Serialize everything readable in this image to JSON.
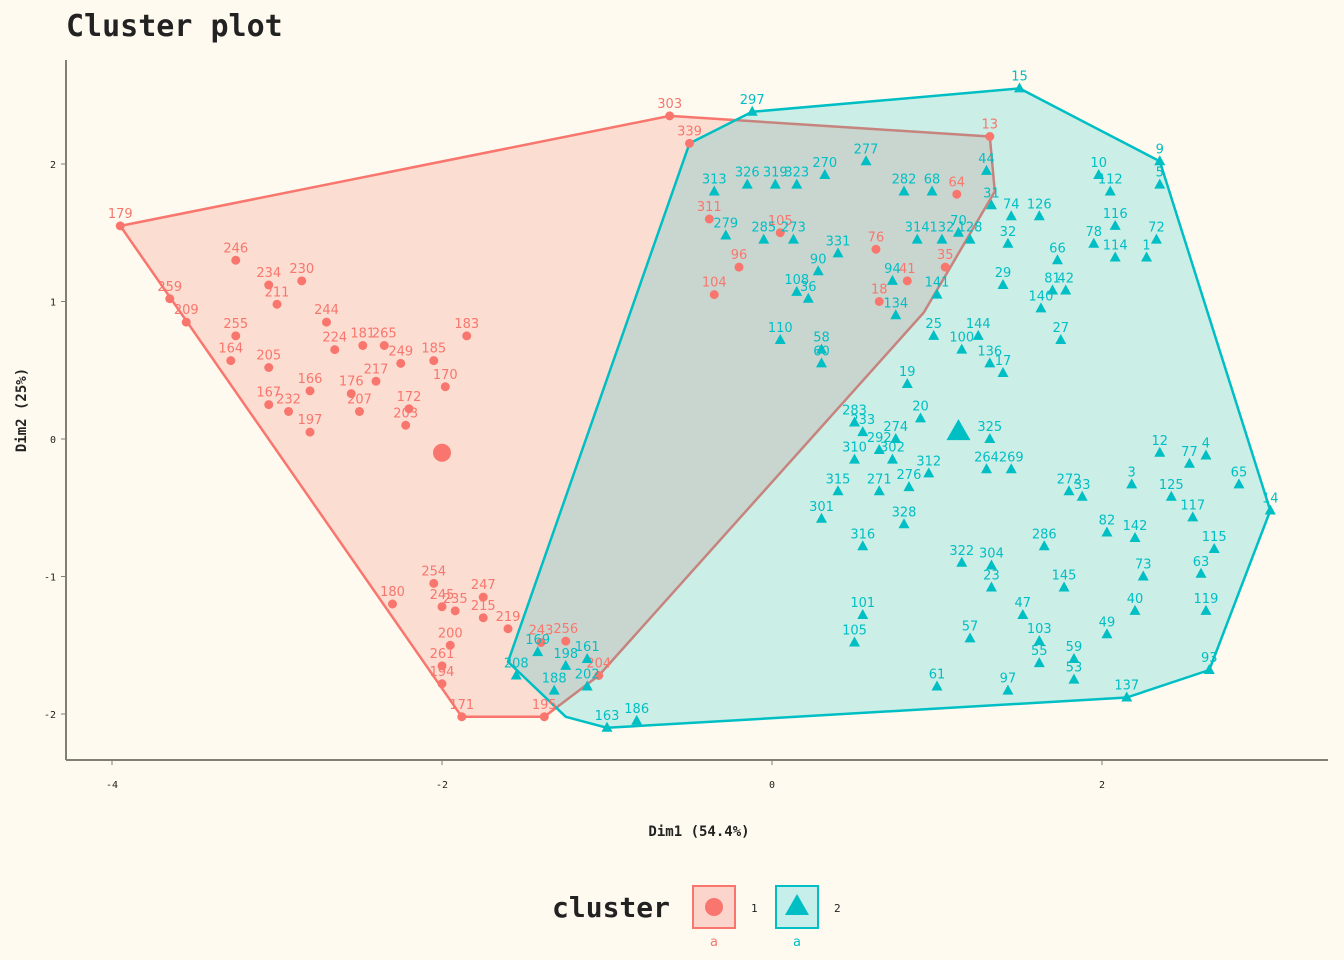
{
  "chart_data": {
    "type": "scatter",
    "title": "Cluster plot",
    "xlabel": "Dim1 (54.4%)",
    "ylabel": "Dim2 (25%)",
    "xlim": [
      -4.3,
      3.4
    ],
    "ylim": [
      -2.35,
      2.75
    ],
    "xticks": [
      -4,
      -2,
      0,
      2
    ],
    "yticks": [
      -2,
      -1,
      0,
      1,
      2
    ],
    "legend_title": "cluster",
    "legend_position": "bottom",
    "series": [
      {
        "name": "1",
        "color": "#f8766d",
        "shape": "circle",
        "centroid": [
          -2.0,
          -0.1
        ],
        "hull": [
          [
            -3.95,
            1.55
          ],
          [
            -0.62,
            2.35
          ],
          [
            1.32,
            2.2
          ],
          [
            1.35,
            1.8
          ],
          [
            0.92,
            0.92
          ],
          [
            -1.05,
            -1.72
          ],
          [
            -1.38,
            -2.02
          ],
          [
            -1.88,
            -2.02
          ]
        ],
        "points": [
          {
            "id": "179",
            "x": -3.95,
            "y": 1.55
          },
          {
            "id": "303",
            "x": -0.62,
            "y": 2.35
          },
          {
            "id": "13",
            "x": 1.32,
            "y": 2.2
          },
          {
            "id": "246",
            "x": -3.25,
            "y": 1.3
          },
          {
            "id": "259",
            "x": -3.65,
            "y": 1.02
          },
          {
            "id": "209",
            "x": -3.55,
            "y": 0.85
          },
          {
            "id": "234",
            "x": -3.05,
            "y": 1.12
          },
          {
            "id": "230",
            "x": -2.85,
            "y": 1.15
          },
          {
            "id": "211",
            "x": -3.0,
            "y": 0.98
          },
          {
            "id": "255",
            "x": -3.25,
            "y": 0.75
          },
          {
            "id": "244",
            "x": -2.7,
            "y": 0.85
          },
          {
            "id": "164",
            "x": -3.28,
            "y": 0.57
          },
          {
            "id": "224",
            "x": -2.65,
            "y": 0.65
          },
          {
            "id": "181",
            "x": -2.48,
            "y": 0.68
          },
          {
            "id": "265",
            "x": -2.35,
            "y": 0.68
          },
          {
            "id": "183",
            "x": -1.85,
            "y": 0.75
          },
          {
            "id": "249",
            "x": -2.25,
            "y": 0.55
          },
          {
            "id": "185",
            "x": -2.05,
            "y": 0.57
          },
          {
            "id": "205",
            "x": -3.05,
            "y": 0.52
          },
          {
            "id": "217",
            "x": -2.4,
            "y": 0.42
          },
          {
            "id": "170",
            "x": -1.98,
            "y": 0.38
          },
          {
            "id": "166",
            "x": -2.8,
            "y": 0.35
          },
          {
            "id": "176",
            "x": -2.55,
            "y": 0.33
          },
          {
            "id": "167",
            "x": -3.05,
            "y": 0.25
          },
          {
            "id": "232",
            "x": -2.93,
            "y": 0.2
          },
          {
            "id": "207",
            "x": -2.5,
            "y": 0.2
          },
          {
            "id": "197",
            "x": -2.8,
            "y": 0.05
          },
          {
            "id": "172",
            "x": -2.2,
            "y": 0.22
          },
          {
            "id": "203",
            "x": -2.22,
            "y": 0.1
          },
          {
            "id": "254",
            "x": -2.05,
            "y": -1.05
          },
          {
            "id": "180",
            "x": -2.3,
            "y": -1.2
          },
          {
            "id": "247",
            "x": -1.75,
            "y": -1.15
          },
          {
            "id": "245",
            "x": -2.0,
            "y": -1.22
          },
          {
            "id": "235",
            "x": -1.92,
            "y": -1.25
          },
          {
            "id": "215",
            "x": -1.75,
            "y": -1.3
          },
          {
            "id": "219",
            "x": -1.6,
            "y": -1.38
          },
          {
            "id": "243",
            "x": -1.4,
            "y": -1.48
          },
          {
            "id": "256",
            "x": -1.25,
            "y": -1.47
          },
          {
            "id": "200",
            "x": -1.95,
            "y": -1.5
          },
          {
            "id": "261",
            "x": -2.0,
            "y": -1.65
          },
          {
            "id": "194",
            "x": -2.0,
            "y": -1.78
          },
          {
            "id": "171",
            "x": -1.88,
            "y": -2.02
          },
          {
            "id": "195",
            "x": -1.38,
            "y": -2.02
          },
          {
            "id": "204",
            "x": -1.05,
            "y": -1.72
          },
          {
            "id": "339",
            "x": -0.5,
            "y": 2.15
          },
          {
            "id": "311",
            "x": -0.38,
            "y": 1.6
          },
          {
            "id": "104",
            "x": -0.35,
            "y": 1.05
          },
          {
            "id": "96",
            "x": -0.2,
            "y": 1.25
          },
          {
            "id": "105",
            "x": 0.05,
            "y": 1.5
          },
          {
            "id": "64",
            "x": 1.12,
            "y": 1.78
          },
          {
            "id": "76",
            "x": 0.63,
            "y": 1.38
          },
          {
            "id": "35",
            "x": 1.05,
            "y": 1.25
          },
          {
            "id": "41",
            "x": 0.82,
            "y": 1.15
          },
          {
            "id": "18",
            "x": 0.65,
            "y": 1.0
          }
        ]
      },
      {
        "name": "2",
        "color": "#00bfc4",
        "shape": "triangle",
        "centroid": [
          1.13,
          0.05
        ],
        "hull": [
          [
            -0.12,
            2.38
          ],
          [
            1.5,
            2.55
          ],
          [
            2.35,
            2.02
          ],
          [
            3.02,
            -0.52
          ],
          [
            2.65,
            -1.68
          ],
          [
            2.15,
            -1.88
          ],
          [
            -1.0,
            -2.1
          ],
          [
            -1.25,
            -2.02
          ],
          [
            -1.6,
            -1.62
          ],
          [
            -0.5,
            2.15
          ]
        ],
        "points": [
          {
            "id": "297",
            "x": -0.12,
            "y": 2.38
          },
          {
            "id": "15",
            "x": 1.5,
            "y": 2.55
          },
          {
            "id": "9",
            "x": 2.35,
            "y": 2.02
          },
          {
            "id": "14",
            "x": 3.02,
            "y": -0.52
          },
          {
            "id": "93",
            "x": 2.65,
            "y": -1.68
          },
          {
            "id": "137",
            "x": 2.15,
            "y": -1.88
          },
          {
            "id": "163",
            "x": -1.0,
            "y": -2.1
          },
          {
            "id": "186",
            "x": -0.82,
            "y": -2.05
          },
          {
            "id": "313",
            "x": -0.35,
            "y": 1.8
          },
          {
            "id": "326",
            "x": -0.15,
            "y": 1.85
          },
          {
            "id": "319",
            "x": 0.02,
            "y": 1.85
          },
          {
            "id": "323",
            "x": 0.15,
            "y": 1.85
          },
          {
            "id": "270",
            "x": 0.32,
            "y": 1.92
          },
          {
            "id": "277",
            "x": 0.57,
            "y": 2.02
          },
          {
            "id": "282",
            "x": 0.8,
            "y": 1.8
          },
          {
            "id": "68",
            "x": 0.97,
            "y": 1.8
          },
          {
            "id": "44",
            "x": 1.3,
            "y": 1.95
          },
          {
            "id": "31",
            "x": 1.33,
            "y": 1.7
          },
          {
            "id": "74",
            "x": 1.45,
            "y": 1.62
          },
          {
            "id": "126",
            "x": 1.62,
            "y": 1.62
          },
          {
            "id": "10",
            "x": 1.98,
            "y": 1.92
          },
          {
            "id": "112",
            "x": 2.05,
            "y": 1.8
          },
          {
            "id": "5",
            "x": 2.35,
            "y": 1.85
          },
          {
            "id": "116",
            "x": 2.08,
            "y": 1.55
          },
          {
            "id": "72",
            "x": 2.33,
            "y": 1.45
          },
          {
            "id": "78",
            "x": 1.95,
            "y": 1.42
          },
          {
            "id": "114",
            "x": 2.08,
            "y": 1.32
          },
          {
            "id": "1",
            "x": 2.27,
            "y": 1.32
          },
          {
            "id": "66",
            "x": 1.73,
            "y": 1.3
          },
          {
            "id": "32",
            "x": 1.43,
            "y": 1.42
          },
          {
            "id": "29",
            "x": 1.4,
            "y": 1.12
          },
          {
            "id": "81",
            "x": 1.7,
            "y": 1.08
          },
          {
            "id": "42",
            "x": 1.78,
            "y": 1.08
          },
          {
            "id": "140",
            "x": 1.63,
            "y": 0.95
          },
          {
            "id": "27",
            "x": 1.75,
            "y": 0.72
          },
          {
            "id": "70",
            "x": 1.13,
            "y": 1.5
          },
          {
            "id": "314",
            "x": 0.88,
            "y": 1.45
          },
          {
            "id": "132",
            "x": 1.03,
            "y": 1.45
          },
          {
            "id": "128",
            "x": 1.2,
            "y": 1.45
          },
          {
            "id": "279",
            "x": -0.28,
            "y": 1.48
          },
          {
            "id": "285",
            "x": -0.05,
            "y": 1.45
          },
          {
            "id": "273",
            "x": 0.13,
            "y": 1.45
          },
          {
            "id": "331",
            "x": 0.4,
            "y": 1.35
          },
          {
            "id": "90",
            "x": 0.28,
            "y": 1.22
          },
          {
            "id": "94",
            "x": 0.73,
            "y": 1.15
          },
          {
            "id": "108",
            "x": 0.15,
            "y": 1.07
          },
          {
            "id": "36",
            "x": 0.22,
            "y": 1.02
          },
          {
            "id": "141",
            "x": 1.0,
            "y": 1.05
          },
          {
            "id": "134",
            "x": 0.75,
            "y": 0.9
          },
          {
            "id": "110",
            "x": 0.05,
            "y": 0.72
          },
          {
            "id": "58",
            "x": 0.3,
            "y": 0.65
          },
          {
            "id": "60",
            "x": 0.3,
            "y": 0.55
          },
          {
            "id": "25",
            "x": 0.98,
            "y": 0.75
          },
          {
            "id": "144",
            "x": 1.25,
            "y": 0.75
          },
          {
            "id": "100",
            "x": 1.15,
            "y": 0.65
          },
          {
            "id": "136",
            "x": 1.32,
            "y": 0.55
          },
          {
            "id": "17",
            "x": 1.4,
            "y": 0.48
          },
          {
            "id": "19",
            "x": 0.82,
            "y": 0.4
          },
          {
            "id": "20",
            "x": 0.9,
            "y": 0.15
          },
          {
            "id": "283",
            "x": 0.5,
            "y": 0.12
          },
          {
            "id": "233",
            "x": 0.55,
            "y": 0.05
          },
          {
            "id": "274",
            "x": 0.75,
            "y": 0.0
          },
          {
            "id": "325",
            "x": 1.32,
            "y": 0.0
          },
          {
            "id": "292",
            "x": 0.65,
            "y": -0.08
          },
          {
            "id": "310",
            "x": 0.5,
            "y": -0.15
          },
          {
            "id": "302",
            "x": 0.73,
            "y": -0.15
          },
          {
            "id": "264",
            "x": 1.3,
            "y": -0.22
          },
          {
            "id": "269",
            "x": 1.45,
            "y": -0.22
          },
          {
            "id": "312",
            "x": 0.95,
            "y": -0.25
          },
          {
            "id": "315",
            "x": 0.4,
            "y": -0.38
          },
          {
            "id": "271",
            "x": 0.65,
            "y": -0.38
          },
          {
            "id": "276",
            "x": 0.83,
            "y": -0.35
          },
          {
            "id": "12",
            "x": 2.35,
            "y": -0.1
          },
          {
            "id": "4",
            "x": 2.63,
            "y": -0.12
          },
          {
            "id": "77",
            "x": 2.53,
            "y": -0.18
          },
          {
            "id": "65",
            "x": 2.83,
            "y": -0.33
          },
          {
            "id": "3",
            "x": 2.18,
            "y": -0.33
          },
          {
            "id": "272",
            "x": 1.8,
            "y": -0.38
          },
          {
            "id": "33",
            "x": 1.88,
            "y": -0.42
          },
          {
            "id": "125",
            "x": 2.42,
            "y": -0.42
          },
          {
            "id": "301",
            "x": 0.3,
            "y": -0.58
          },
          {
            "id": "328",
            "x": 0.8,
            "y": -0.62
          },
          {
            "id": "316",
            "x": 0.55,
            "y": -0.78
          },
          {
            "id": "322",
            "x": 1.15,
            "y": -0.9
          },
          {
            "id": "304",
            "x": 1.33,
            "y": -0.92
          },
          {
            "id": "286",
            "x": 1.65,
            "y": -0.78
          },
          {
            "id": "82",
            "x": 2.03,
            "y": -0.68
          },
          {
            "id": "142",
            "x": 2.2,
            "y": -0.72
          },
          {
            "id": "117",
            "x": 2.55,
            "y": -0.57
          },
          {
            "id": "115",
            "x": 2.68,
            "y": -0.8
          },
          {
            "id": "63",
            "x": 2.6,
            "y": -0.98
          },
          {
            "id": "73",
            "x": 2.25,
            "y": -1.0
          },
          {
            "id": "23",
            "x": 1.33,
            "y": -1.08
          },
          {
            "id": "145",
            "x": 1.77,
            "y": -1.08
          },
          {
            "id": "101",
            "x": 0.55,
            "y": -1.28
          },
          {
            "id": "105",
            "x": 0.5,
            "y": -1.48
          },
          {
            "id": "47",
            "x": 1.52,
            "y": -1.28
          },
          {
            "id": "49",
            "x": 2.03,
            "y": -1.42
          },
          {
            "id": "40",
            "x": 2.2,
            "y": -1.25
          },
          {
            "id": "119",
            "x": 2.63,
            "y": -1.25
          },
          {
            "id": "103",
            "x": 1.62,
            "y": -1.47
          },
          {
            "id": "57",
            "x": 1.2,
            "y": -1.45
          },
          {
            "id": "59",
            "x": 1.83,
            "y": -1.6
          },
          {
            "id": "55",
            "x": 1.62,
            "y": -1.63
          },
          {
            "id": "53",
            "x": 1.83,
            "y": -1.75
          },
          {
            "id": "61",
            "x": 1.0,
            "y": -1.8
          },
          {
            "id": "97",
            "x": 1.43,
            "y": -1.83
          },
          {
            "id": "161",
            "x": -1.12,
            "y": -1.6
          },
          {
            "id": "198",
            "x": -1.25,
            "y": -1.65
          },
          {
            "id": "188",
            "x": -1.32,
            "y": -1.83
          },
          {
            "id": "202",
            "x": -1.12,
            "y": -1.8
          },
          {
            "id": "169",
            "x": -1.42,
            "y": -1.55
          },
          {
            "id": "208",
            "x": -1.55,
            "y": -1.72
          }
        ]
      }
    ]
  },
  "legend": {
    "title": "cluster",
    "items": [
      {
        "label": "1",
        "sub": "a",
        "color": "#f8766d",
        "shape": "circle"
      },
      {
        "label": "2",
        "sub": "a",
        "color": "#00bfc4",
        "shape": "triangle"
      }
    ]
  }
}
